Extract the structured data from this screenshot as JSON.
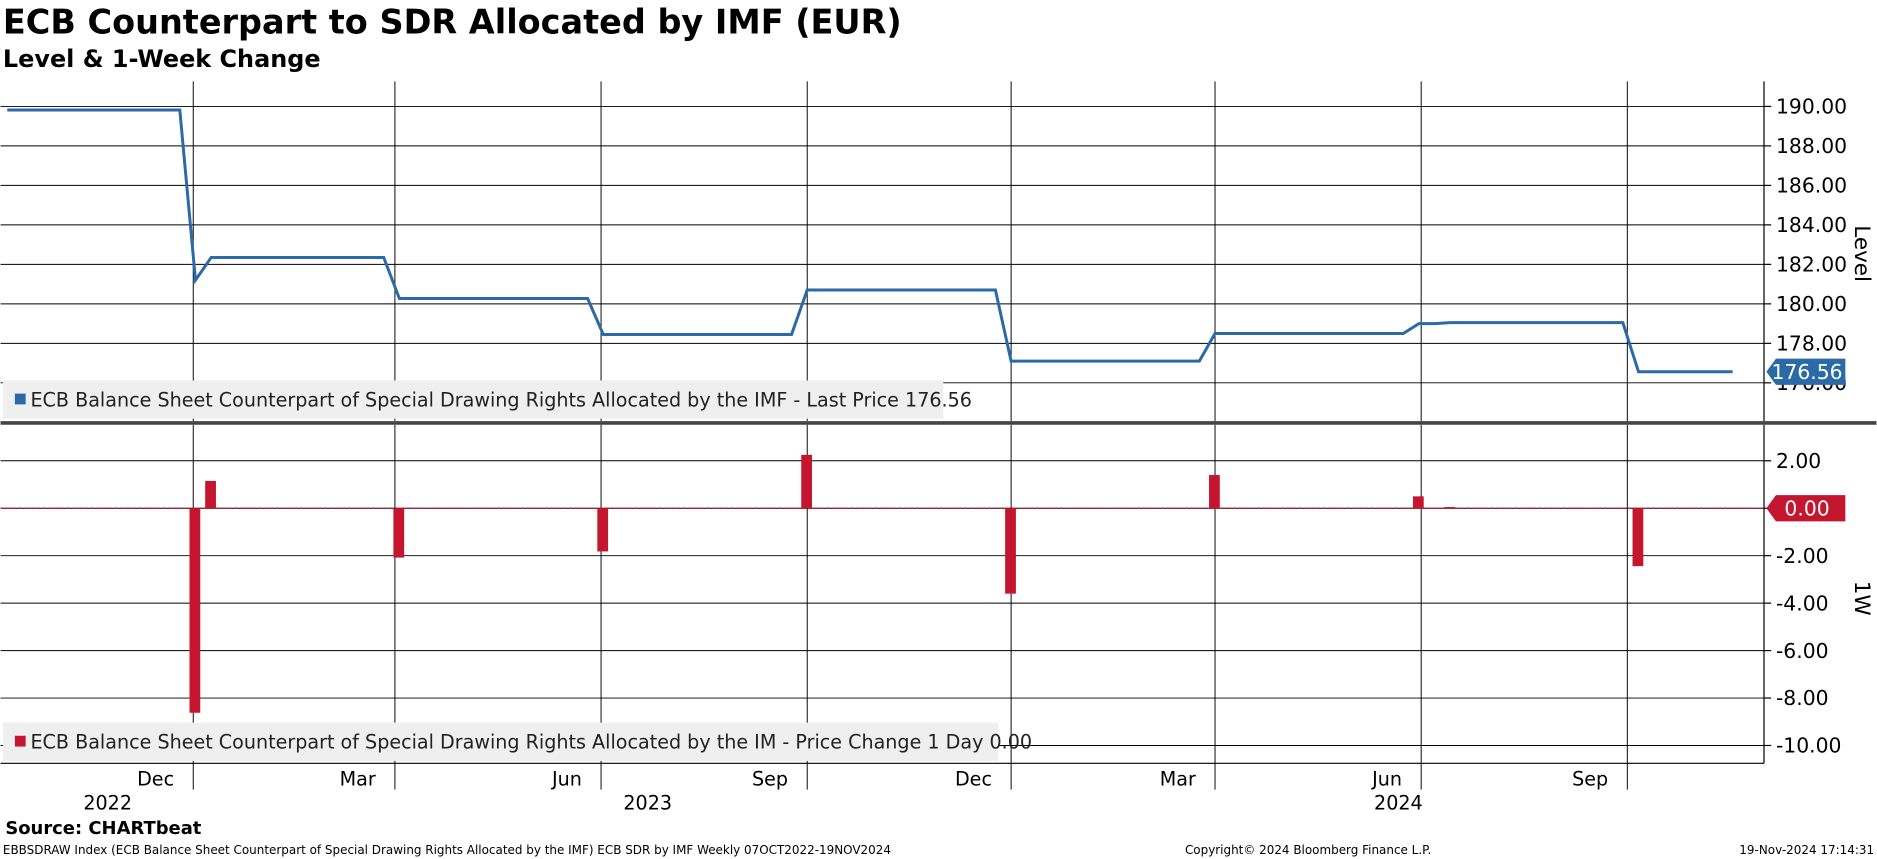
{
  "chart_data": [
    {
      "type": "line",
      "title": "ECB Counterpart to SDR Allocated by IMF (EUR)",
      "subtitle": "Level & 1-Week Change",
      "y_label": "Level",
      "x": [
        "2022-09-09",
        "2022-11-25",
        "2022-12-02",
        "2022-12-09",
        "2023-02-24",
        "2023-03-03",
        "2023-05-26",
        "2023-06-02",
        "2023-08-25",
        "2023-09-01",
        "2023-11-24",
        "2023-12-01",
        "2024-02-23",
        "2024-03-01",
        "2024-05-24",
        "2024-05-31",
        "2024-06-07",
        "2024-06-14",
        "2024-08-30",
        "2024-09-06",
        "2024-10-18"
      ],
      "series": [
        {
          "name": "ECB Balance Sheet Counterpart of Special Drawing Rights Allocated by the IMF - Last Price 176.56",
          "color": "#2b6aa6",
          "values": [
            189.82,
            189.82,
            181.2,
            182.35,
            182.35,
            180.27,
            180.27,
            178.45,
            178.45,
            180.7,
            180.7,
            177.1,
            177.1,
            178.5,
            178.5,
            179.0,
            179.0,
            179.05,
            179.05,
            176.56,
            176.56
          ]
        }
      ],
      "xlim": [
        "2022-09-06",
        "2024-11-01"
      ],
      "ylim": [
        174.06,
        191.27
      ],
      "yticks": [
        {
          "value": 176,
          "label": "176.00"
        },
        {
          "value": 178,
          "label": "178.00"
        },
        {
          "value": 180,
          "label": "180.00"
        },
        {
          "value": 182,
          "label": "182.00"
        },
        {
          "value": 184,
          "label": "184.00"
        },
        {
          "value": 186,
          "label": "186.00"
        },
        {
          "value": 188,
          "label": "188.00"
        },
        {
          "value": 190,
          "label": "190.00"
        }
      ],
      "grid": true
    },
    {
      "type": "bar",
      "y_label": "1W",
      "x": [
        "2022-12-02",
        "2022-12-09",
        "2023-03-03",
        "2023-06-02",
        "2023-09-01",
        "2023-12-01",
        "2024-03-01",
        "2024-05-31",
        "2024-06-14",
        "2024-09-06",
        "2024-10-18"
      ],
      "series": [
        {
          "name": "ECB Balance Sheet Counterpart of Special Drawing Rights Allocated by the IM - Price Change 1 Day 0.00",
          "color": "#c4162e",
          "values": [
            -8.62,
            1.15,
            -2.08,
            -1.82,
            2.25,
            -3.6,
            1.4,
            0.5,
            0.05,
            -2.44,
            0
          ],
          "value_labels": [
            null,
            null,
            null,
            null,
            null,
            null,
            null,
            null,
            null,
            null,
            "0.00"
          ]
        }
      ],
      "xlim": [
        "2022-09-06",
        "2024-11-01"
      ],
      "ylim": [
        -10.75,
        3.52
      ],
      "yticks": [
        {
          "value": -10,
          "label": "-10.00"
        },
        {
          "value": -8,
          "label": "-8.00"
        },
        {
          "value": -6,
          "label": "-6.00"
        },
        {
          "value": -4,
          "label": "-4.00"
        },
        {
          "value": -2,
          "label": "-2.00"
        },
        {
          "value": 0,
          "label": "0.00"
        },
        {
          "value": 2,
          "label": "2.00"
        }
      ],
      "xticks": [
        {
          "value": "2022-12-01",
          "label": "Dec"
        },
        {
          "value": "2023-03-01",
          "label": "Mar"
        },
        {
          "value": "2023-06-01",
          "label": "Jun"
        },
        {
          "value": "2023-09-01",
          "label": "Sep"
        },
        {
          "value": "2023-12-01",
          "label": "Dec"
        },
        {
          "value": "2024-03-01",
          "label": "Mar"
        },
        {
          "value": "2024-06-01",
          "label": "Jun"
        },
        {
          "value": "2024-09-01",
          "label": "Sep"
        }
      ],
      "year_labels": [
        2022,
        2023,
        2024
      ],
      "grid": true
    }
  ],
  "source": "Source: CHARTbeat",
  "footer": "EBBSDRAW Index (ECB Balance Sheet Counterpart of Special Drawing Rights Allocated by the IMF) ECB SDR by IMF  Weekly 07OCT2022-19NOV2024",
  "copyright": "Copyright© 2024 Bloomberg Finance L.P.",
  "timestamp": "19-Nov-2024 17:14:31"
}
